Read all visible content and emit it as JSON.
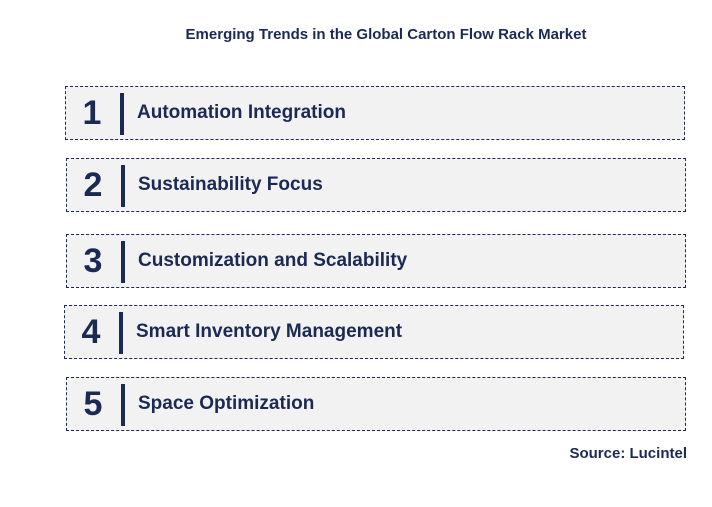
{
  "title": "Emerging Trends in the Global Carton Flow Rack Market",
  "trends": [
    {
      "number": "1",
      "label": "Automation Integration"
    },
    {
      "number": "2",
      "label": "Sustainability Focus"
    },
    {
      "number": "3",
      "label": "Customization and Scalability"
    },
    {
      "number": "4",
      "label": "Smart Inventory Management"
    },
    {
      "number": "5",
      "label": "Space Optimization"
    }
  ],
  "source": "Source: Lucintel",
  "colors": {
    "primary": "#1b2a55",
    "box_fill": "#f2f2f2"
  }
}
